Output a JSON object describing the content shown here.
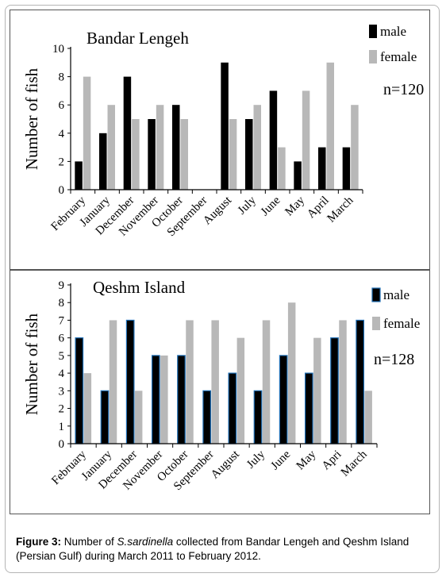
{
  "chart_data": [
    {
      "type": "bar",
      "title": "Bandar Lengeh",
      "annotation": "n=120",
      "ylabel": "Number of fish",
      "xlabel": "",
      "ylim": [
        0,
        10
      ],
      "yticks": [
        0,
        2,
        4,
        6,
        8,
        10
      ],
      "categories": [
        "February",
        "January",
        "December",
        "November",
        "October",
        "September",
        "August",
        "July",
        "June",
        "May",
        "April",
        "March"
      ],
      "series": [
        {
          "name": "male",
          "color": "#000000",
          "values": [
            2,
            4,
            8,
            5,
            6,
            0,
            9,
            5,
            7,
            2,
            3,
            3
          ]
        },
        {
          "name": "female",
          "color": "#b8b8b8",
          "values": [
            8,
            6,
            5,
            6,
            5,
            0,
            5,
            6,
            3,
            7,
            9,
            6
          ]
        }
      ],
      "legend_position": "top-right"
    },
    {
      "type": "bar",
      "title": "Qeshm Island",
      "annotation": "n=128",
      "ylabel": "Number of fish",
      "xlabel": "",
      "ylim": [
        0,
        9
      ],
      "yticks": [
        0,
        1,
        2,
        3,
        4,
        5,
        6,
        7,
        8,
        9
      ],
      "categories": [
        "February",
        "January",
        "December",
        "November",
        "October",
        "September",
        "August",
        "July",
        "June",
        "May",
        "Apri",
        "March"
      ],
      "series": [
        {
          "name": "male",
          "color": "#000000",
          "edge": "#1f6fb5",
          "values": [
            6,
            3,
            7,
            5,
            5,
            3,
            4,
            3,
            5,
            4,
            6,
            7
          ]
        },
        {
          "name": "female",
          "color": "#b8b8b8",
          "values": [
            4,
            7,
            3,
            5,
            7,
            7,
            6,
            7,
            8,
            6,
            7,
            3
          ]
        }
      ],
      "legend_position": "top-right"
    }
  ],
  "caption": {
    "label": "Figure 3:",
    "pre": " Number of ",
    "species": "S.sardinella",
    "post": " collected from Bandar Lengeh and Qeshm Island (Persian Gulf) during March 2011 to February 2012."
  }
}
